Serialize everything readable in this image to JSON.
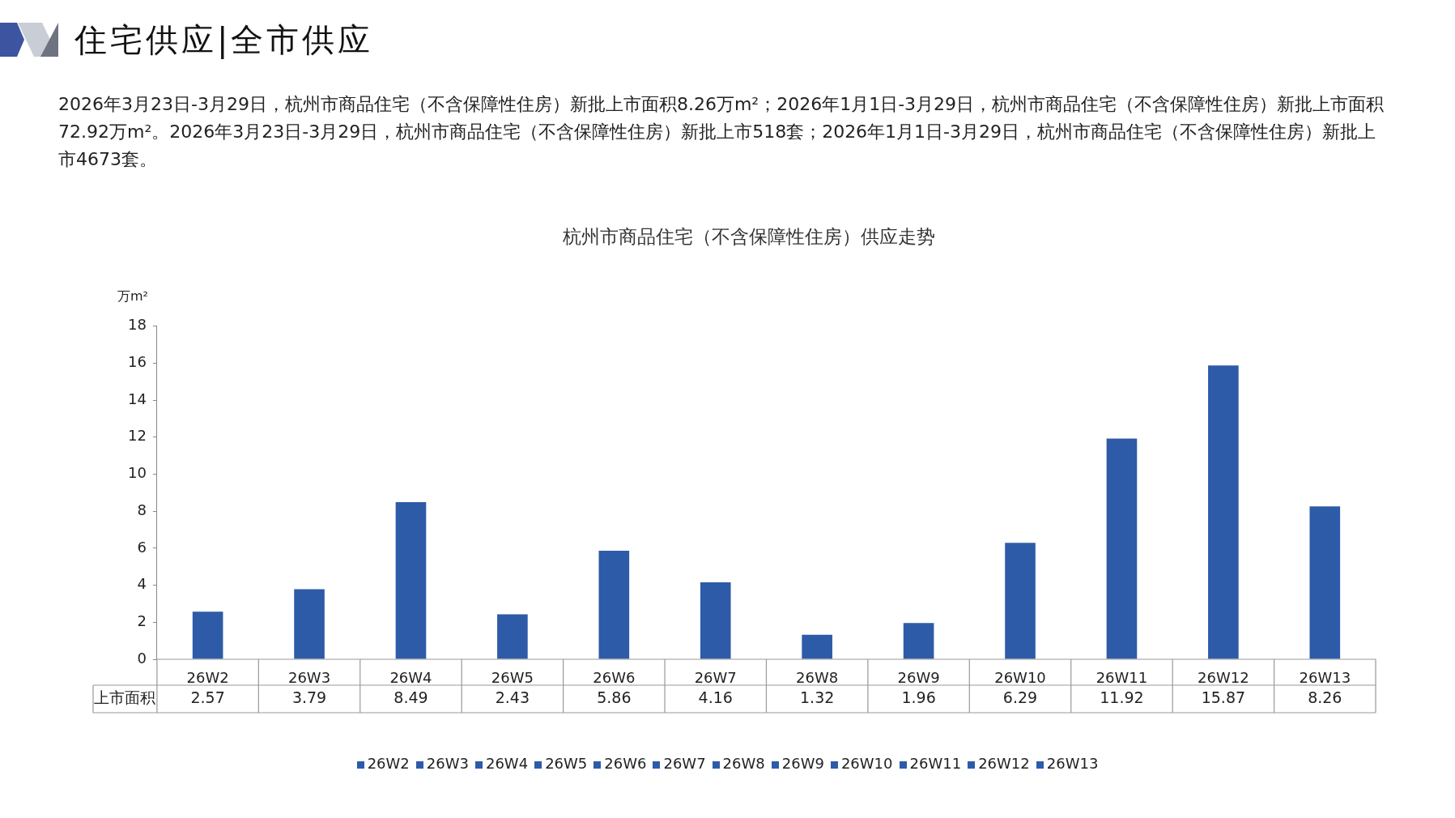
{
  "chart_data": {
    "type": "bar",
    "title": "杭州市商品住宅（不含保障性住房）供应走势",
    "ylabel": "万m²",
    "annotations": [
      "住宅供应|全市供应",
      "2026年3月23日-3月29日，杭州市商品住宅（不含保障性住房）新批上市面积8.26万m²；2026年1月1日-3月29日，杭州市商品住宅（不含保障性住房）新批上市面积72.92万m²。2026年3月23日-3月29日，杭州市商品住宅（不含保障性住房）新批上市518套；2026年1月1日-3月29日，杭州市商品住宅（不含保障性住房）新批上市4673套。"
    ],
    "categories": [
      "26W2",
      "26W3",
      "26W4",
      "26W5",
      "26W6",
      "26W7",
      "26W8",
      "26W9",
      "26W10",
      "26W11",
      "26W12",
      "26W13"
    ],
    "series": [
      {
        "name": "上市面积",
        "color": "#2e5ba8",
        "values": [
          2.57,
          3.79,
          8.49,
          2.43,
          5.86,
          4.16,
          1.32,
          1.96,
          6.29,
          11.92,
          15.87,
          8.26
        ]
      }
    ],
    "ylim": [
      0,
      18
    ],
    "yticks": [
      0,
      2,
      4,
      6,
      8,
      10,
      12,
      14,
      16,
      18
    ],
    "data_labels": true,
    "legend": "bottom"
  }
}
